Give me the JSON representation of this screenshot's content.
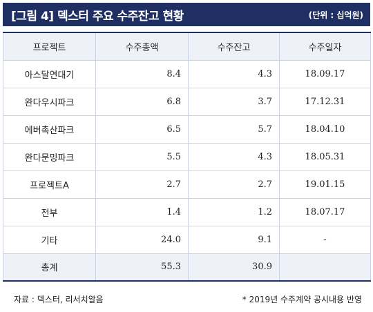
{
  "header": {
    "title": "[그림 4] 덱스터 주요 수주잔고 현황",
    "unit": "(단위 : 십억원)"
  },
  "table": {
    "columns": [
      "프로젝트",
      "수주총액",
      "수주잔고",
      "수주일자"
    ],
    "rows": [
      {
        "project": "아스달연대기",
        "total": "8.4",
        "backlog": "4.3",
        "date": "18.09.17"
      },
      {
        "project": "완다우시파크",
        "total": "6.8",
        "backlog": "3.7",
        "date": "17.12.31"
      },
      {
        "project": "에버촉산파크",
        "total": "6.5",
        "backlog": "5.7",
        "date": "18.04.10"
      },
      {
        "project": "완다문밍파크",
        "total": "5.5",
        "backlog": "4.3",
        "date": "18.05.31"
      },
      {
        "project": "프로젝트A",
        "total": "2.7",
        "backlog": "2.7",
        "date": "19.01.15"
      },
      {
        "project": "전부",
        "total": "1.4",
        "backlog": "1.2",
        "date": "18.07.17"
      },
      {
        "project": "기타",
        "total": "24.0",
        "backlog": "9.1",
        "date": "-"
      }
    ],
    "total_row": {
      "project": "총계",
      "total": "55.3",
      "backlog": "30.9",
      "date": ""
    }
  },
  "footer": {
    "source": "자료 : 덱스터, 리서치알음",
    "note": "* 2019년 수주계약 공시내용 반영"
  },
  "colors": {
    "header_bg": "#1f2f63",
    "header_cell_bg": "#eef2f8",
    "border": "#c9d3e1"
  }
}
